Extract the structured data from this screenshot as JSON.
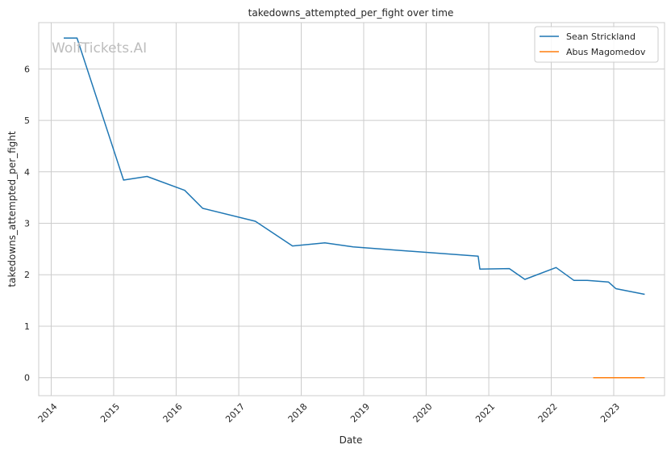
{
  "chart_data": {
    "type": "line",
    "title": "takedowns_attempted_per_fight over time",
    "xlabel": "Date",
    "ylabel": "takedowns_attempted_per_fight",
    "watermark": "WolfTickets.AI",
    "x_ticks": [
      "2014",
      "2015",
      "2016",
      "2017",
      "2018",
      "2019",
      "2020",
      "2021",
      "2022",
      "2023"
    ],
    "y_ticks": [
      "0",
      "1",
      "2",
      "3",
      "4",
      "5",
      "6"
    ],
    "xlim": [
      "2013-10-20",
      "2023-10-25"
    ],
    "ylim": [
      -0.35,
      6.9
    ],
    "grid": true,
    "legend_position": "top-right",
    "series": [
      {
        "name": "Sean Strickland",
        "color": "#1f77b4",
        "points": [
          {
            "x": "2014-03-15",
            "y": 6.6
          },
          {
            "x": "2014-06-01",
            "y": 6.6
          },
          {
            "x": "2015-02-28",
            "y": 3.84
          },
          {
            "x": "2015-07-15",
            "y": 3.91
          },
          {
            "x": "2016-02-20",
            "y": 3.64
          },
          {
            "x": "2016-06-04",
            "y": 3.29
          },
          {
            "x": "2017-04-08",
            "y": 3.04
          },
          {
            "x": "2017-11-11",
            "y": 2.56
          },
          {
            "x": "2018-05-19",
            "y": 2.62
          },
          {
            "x": "2018-11-01",
            "y": 2.54
          },
          {
            "x": "2020-10-31",
            "y": 2.36
          },
          {
            "x": "2020-11-10",
            "y": 2.11
          },
          {
            "x": "2021-05-01",
            "y": 2.12
          },
          {
            "x": "2021-07-31",
            "y": 1.91
          },
          {
            "x": "2022-01-29",
            "y": 2.14
          },
          {
            "x": "2022-05-14",
            "y": 1.89
          },
          {
            "x": "2022-07-30",
            "y": 1.89
          },
          {
            "x": "2022-12-01",
            "y": 1.86
          },
          {
            "x": "2023-01-14",
            "y": 1.73
          },
          {
            "x": "2023-07-01",
            "y": 1.62
          }
        ]
      },
      {
        "name": "Abus Magomedov",
        "color": "#ff7f0e",
        "points": [
          {
            "x": "2022-09-03",
            "y": 0.0
          },
          {
            "x": "2023-07-01",
            "y": 0.0
          }
        ]
      }
    ]
  }
}
